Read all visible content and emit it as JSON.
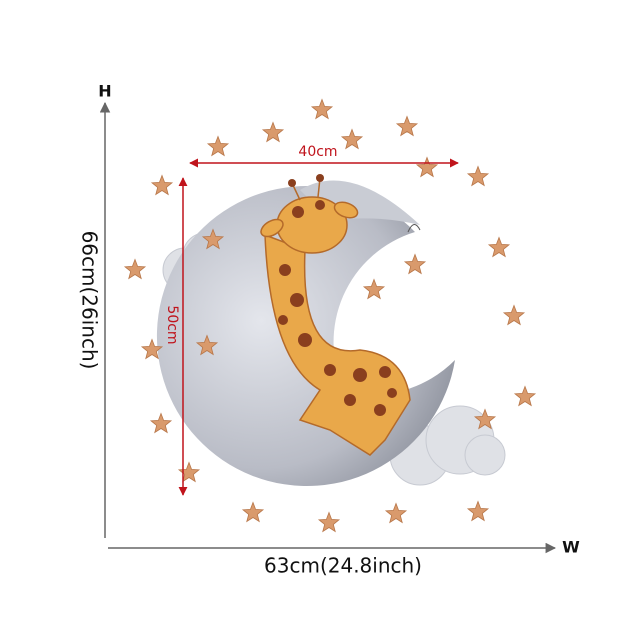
{
  "labels": {
    "height_marker": "H",
    "width_marker": "W",
    "height_total": "66cm(26inch)",
    "width_total": "63cm(24.8inch)",
    "inner_width": "40cm",
    "inner_height": "50cm"
  }
}
